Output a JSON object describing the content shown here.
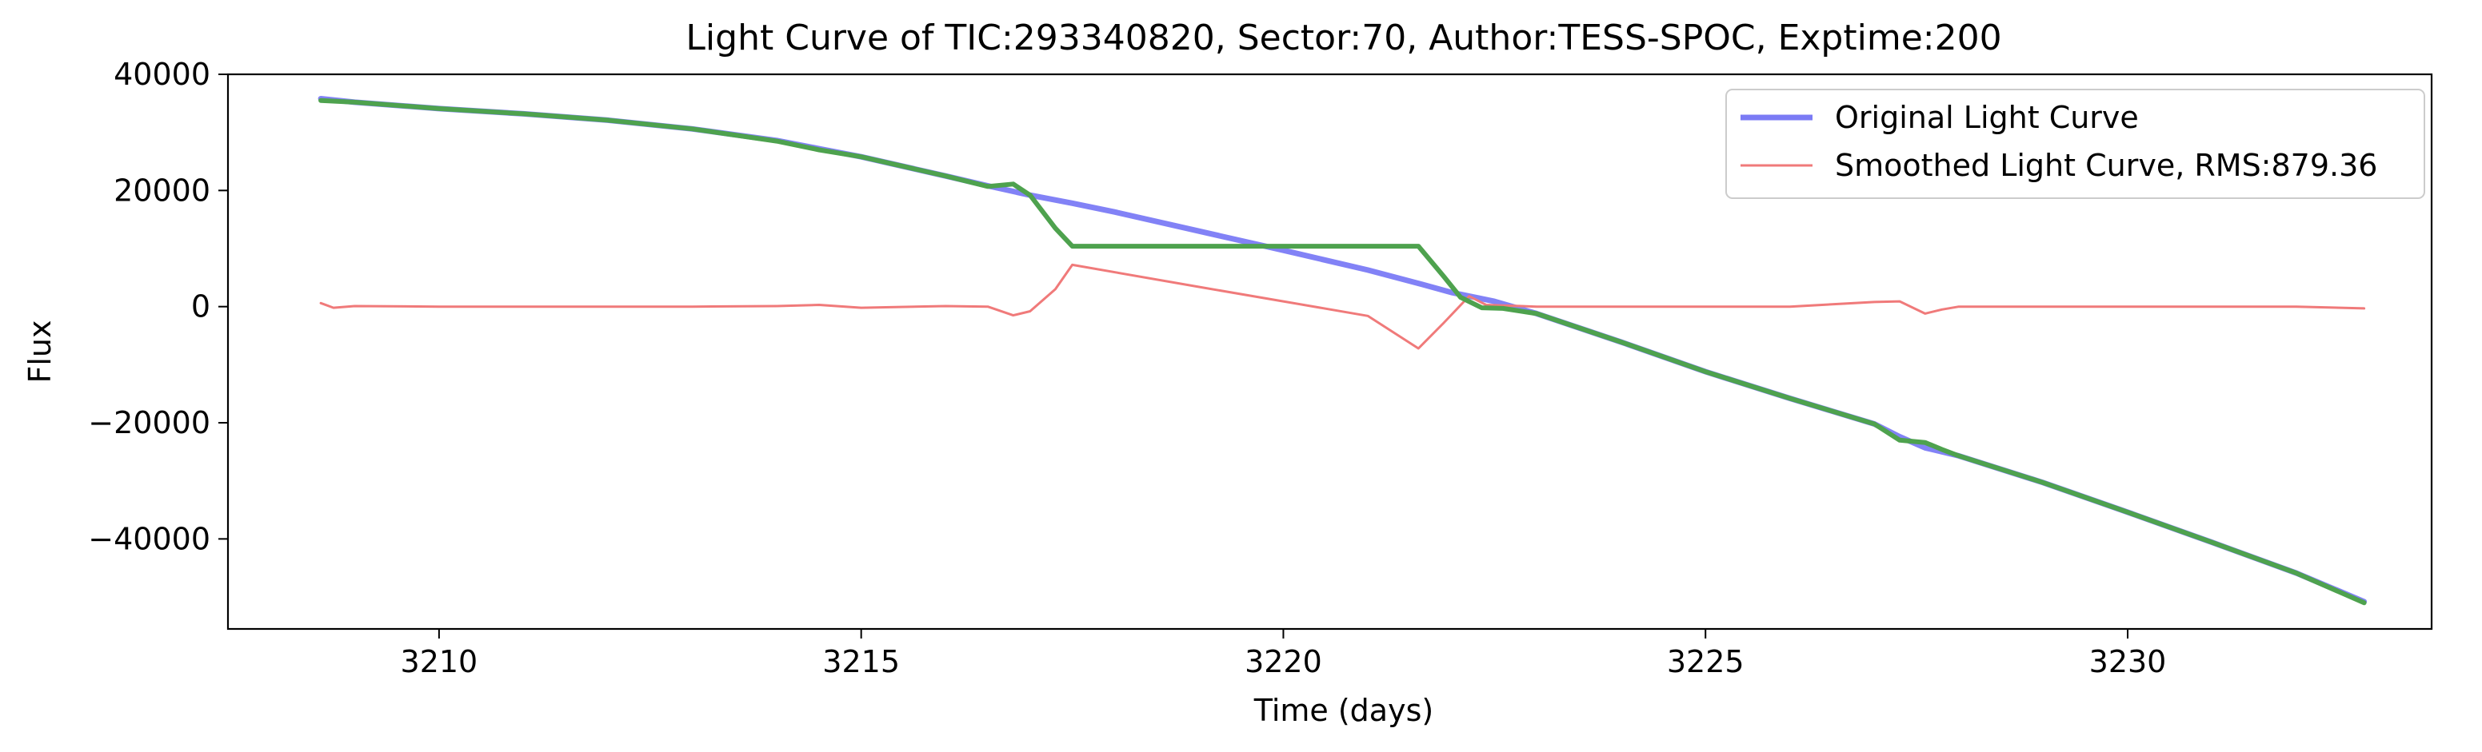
{
  "chart_data": {
    "type": "line",
    "title": "Light Curve of TIC:293340820, Sector:70, Author:TESS-SPOC, Exptime:200",
    "xlabel": "Time (days)",
    "ylabel": "Flux",
    "xlim": [
      3207.5,
      3233.6
    ],
    "ylim": [
      -55500,
      40000
    ],
    "xticks": [
      3210,
      3215,
      3220,
      3225,
      3230
    ],
    "yticks": [
      40000,
      20000,
      0,
      -20000,
      -40000
    ],
    "xtick_labels": [
      "3210",
      "3215",
      "3220",
      "3225",
      "3230"
    ],
    "ytick_labels": [
      "40000",
      "20000",
      "0",
      "−20000",
      "−40000"
    ],
    "grid": false,
    "legend_position": "top-right",
    "series": [
      {
        "name": "Original Light Curve",
        "color": "#7b7bf5",
        "x": [
          3208.6,
          3209.0,
          3210.0,
          3211.0,
          3212.0,
          3213.0,
          3214.0,
          3214.5,
          3215.0,
          3216.0,
          3216.5,
          3217.0,
          3217.5,
          3218.0,
          3219.0,
          3220.0,
          3221.0,
          3221.6,
          3222.0,
          3222.5,
          3223.0,
          3224.0,
          3225.0,
          3226.0,
          3227.0,
          3227.3,
          3227.6,
          3228.0,
          3229.0,
          3230.0,
          3231.0,
          3232.0,
          3232.8
        ],
        "y": [
          35800,
          35200,
          34100,
          33200,
          32100,
          30600,
          28600,
          27200,
          25800,
          22500,
          20800,
          19200,
          17800,
          16300,
          13000,
          9700,
          6300,
          4000,
          2400,
          900,
          -1200,
          -6100,
          -11200,
          -15800,
          -20200,
          -22400,
          -24300,
          -25700,
          -30300,
          -35400,
          -40600,
          -45900,
          -50800
        ]
      },
      {
        "name": "Smoothed Light Curve, RMS:879.36",
        "color": "#f07a7a",
        "x": [
          3208.6,
          3208.75,
          3209.0,
          3210.0,
          3211.0,
          3212.0,
          3213.0,
          3214.0,
          3214.5,
          3215.0,
          3216.0,
          3216.5,
          3216.8,
          3217.0,
          3217.3,
          3217.5,
          3219.0,
          3220.0,
          3221.0,
          3221.6,
          3221.9,
          3222.2,
          3222.4,
          3223.0,
          3224.0,
          3225.0,
          3226.0,
          3227.0,
          3227.3,
          3227.6,
          3227.8,
          3228.0,
          3229.0,
          3230.0,
          3231.0,
          3232.0,
          3232.8
        ],
        "y": [
          600,
          -200,
          100,
          0,
          0,
          0,
          0,
          100,
          300,
          -200,
          100,
          0,
          -1500,
          -800,
          3000,
          7200,
          3400,
          900,
          -1600,
          -7200,
          -2800,
          1800,
          300,
          0,
          0,
          0,
          0,
          800,
          900,
          -1200,
          -500,
          0,
          0,
          0,
          0,
          0,
          -300
        ]
      },
      {
        "name": "",
        "color": "#4ea24e",
        "x": [
          3208.6,
          3209.0,
          3210.0,
          3211.0,
          3212.0,
          3213.0,
          3214.0,
          3214.5,
          3215.0,
          3216.0,
          3216.5,
          3216.8,
          3217.0,
          3217.3,
          3217.5,
          3219.0,
          3220.0,
          3221.0,
          3221.6,
          3221.9,
          3222.1,
          3222.35,
          3222.6,
          3223.0,
          3224.0,
          3225.0,
          3226.0,
          3227.0,
          3227.3,
          3227.6,
          3227.8,
          3228.0,
          3229.0,
          3230.0,
          3231.0,
          3232.0,
          3232.8
        ],
        "y": [
          35500,
          35200,
          34100,
          33200,
          32100,
          30600,
          28500,
          27000,
          25800,
          22500,
          20700,
          21100,
          19200,
          13500,
          10400,
          10400,
          10400,
          10400,
          10400,
          5200,
          1600,
          -200,
          -300,
          -1200,
          -6100,
          -11200,
          -15800,
          -20200,
          -23000,
          -23400,
          -24600,
          -25700,
          -30300,
          -35400,
          -40600,
          -45900,
          -51000
        ]
      }
    ]
  }
}
